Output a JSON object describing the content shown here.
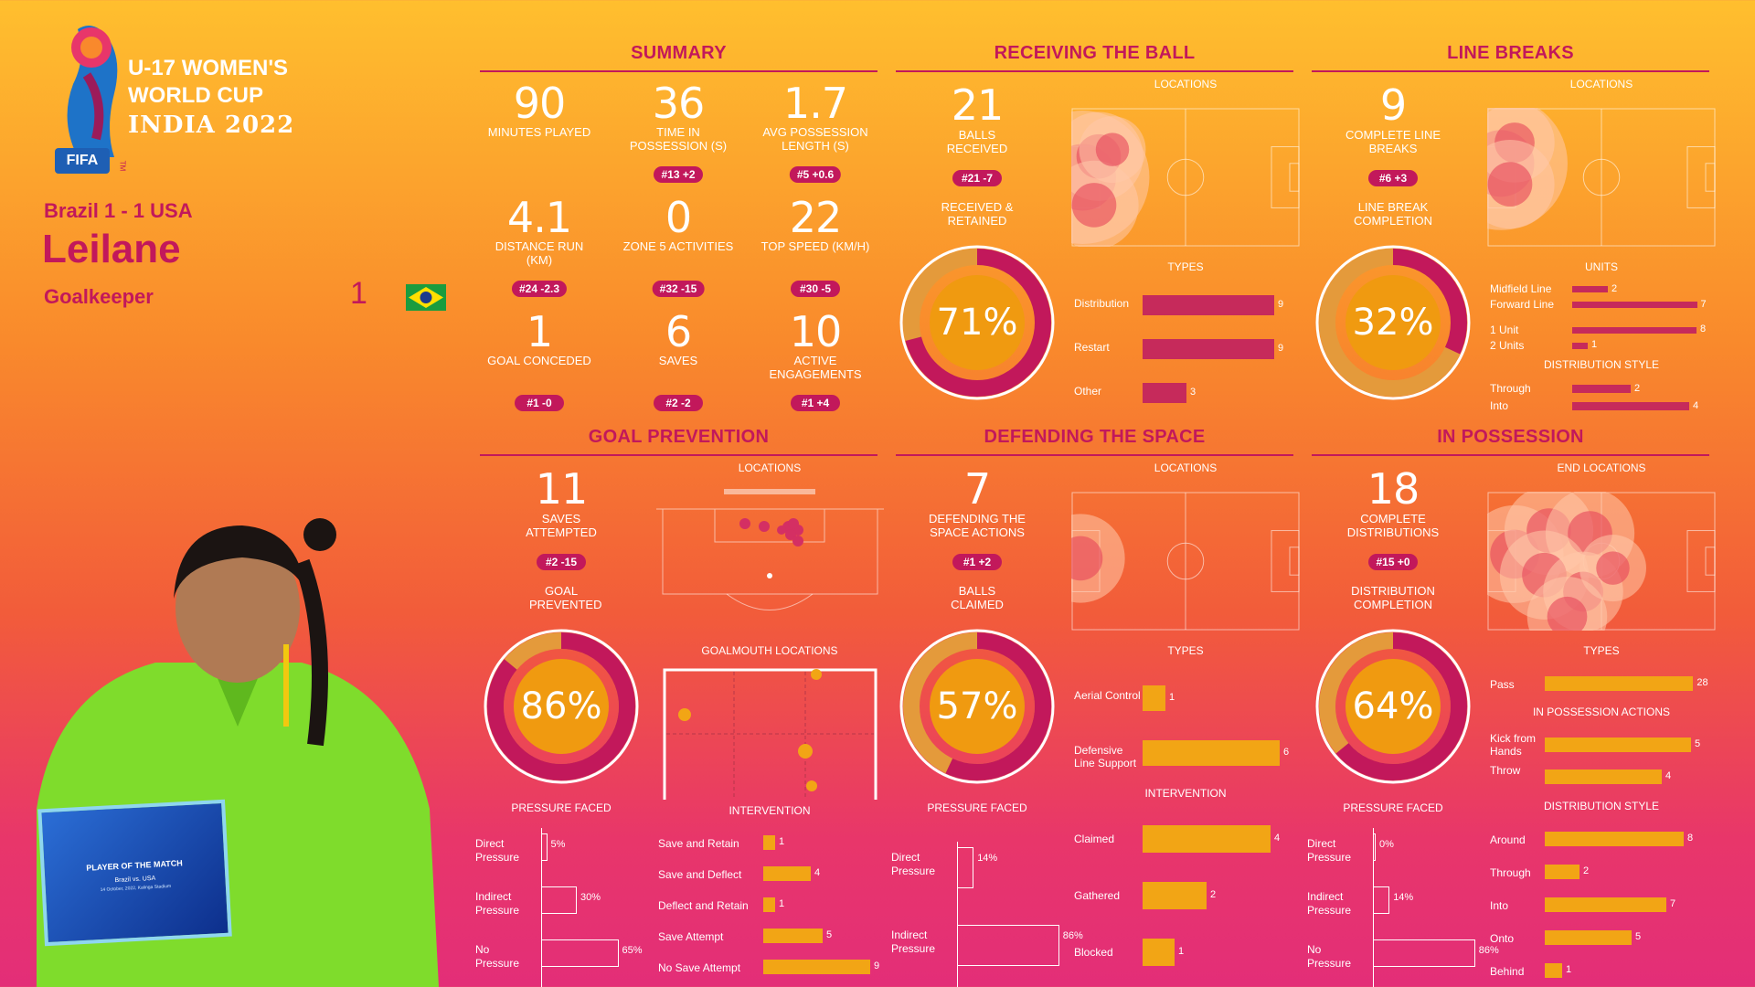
{
  "brand": {
    "fifa": "FIFA",
    "tm": "TM",
    "event_line1": "U-17 WOMEN'S",
    "event_line2": "WORLD CUP",
    "event_line3": "INDIA 2022"
  },
  "player": {
    "match": "Brazil 1 - 1 USA",
    "name": "Leilane",
    "position": "Goalkeeper",
    "number": "1",
    "flag": "brazil-flag-icon"
  },
  "award": {
    "title": "PLAYER OF THE MATCH",
    "match": "Brazil vs. USA",
    "date": "14 October, 2022, Kalinga Stadium"
  },
  "colors": {
    "accent": "#c2185b",
    "bar_red": "#c62a5b",
    "bar_orange": "#f2a515",
    "donut_fill": "#f09a10"
  },
  "summary": {
    "title": "SUMMARY",
    "stats": [
      {
        "value": "90",
        "label": "MINUTES PLAYED",
        "badge": ""
      },
      {
        "value": "36",
        "label": "TIME IN POSSESSION (s)",
        "badge": "#13 +2"
      },
      {
        "value": "1.7",
        "label": "AVG POSSESSION LENGTH (s)",
        "badge": "#5 +0.6"
      },
      {
        "value": "4.1",
        "label": "DISTANCE RUN (KM)",
        "badge": "#24 -2.3"
      },
      {
        "value": "0",
        "label": "ZONE 5 ACTIVITIES",
        "badge": "#32 -15"
      },
      {
        "value": "22",
        "label": "TOP SPEED (KM/H)",
        "badge": "#30 -5"
      },
      {
        "value": "1",
        "label": "GOAL CONCEDED",
        "badge": "#1 -0"
      },
      {
        "value": "6",
        "label": "SAVES",
        "badge": "#2 -2"
      },
      {
        "value": "10",
        "label": "ACTIVE ENGAGEMENTS",
        "badge": "#1 +4"
      }
    ]
  },
  "receiving": {
    "title": "RECEIVING THE BALL",
    "value": "21",
    "label": "BALLS RECEIVED",
    "badge": "#21 -7",
    "sub": "RECEIVED & RETAINED",
    "pct": "71%",
    "pct_value": 0.71,
    "locations": "LOCATIONS",
    "types_title": "TYPES",
    "types": [
      {
        "label": "Distribution",
        "value": 9
      },
      {
        "label": "Restart",
        "value": 9
      },
      {
        "label": "Other",
        "value": 3
      }
    ]
  },
  "line_breaks": {
    "title": "LINE BREAKS",
    "value": "9",
    "label": "COMPLETE LINE BREAKS",
    "badge": "#6 +3",
    "sub": "LINE BREAK COMPLETION",
    "pct": "32%",
    "pct_value": 0.32,
    "locations": "LOCATIONS",
    "units_title": "UNITS",
    "units": [
      {
        "label": "Midfield Line",
        "value": 2
      },
      {
        "label": "Forward Line",
        "value": 7
      },
      {
        "label": "1 Unit",
        "value": 8
      },
      {
        "label": "2 Units",
        "value": 1
      }
    ],
    "style_title": "DISTRIBUTION STYLE",
    "style": [
      {
        "label": "Through",
        "value": 2
      },
      {
        "label": "Into",
        "value": 4
      }
    ]
  },
  "goal_prevention": {
    "title": "GOAL PREVENTION",
    "value": "11",
    "label": "SAVES ATTEMPTED",
    "badge": "#2 -15",
    "sub": "GOAL PREVENTED",
    "pct": "86%",
    "pct_value": 0.86,
    "locations": "LOCATIONS",
    "goalmouth": "GOALMOUTH LOCATIONS",
    "pressure_title": "PRESSURE FACED",
    "pressure": [
      {
        "label1": "Direct",
        "label2": "Pressure",
        "value": "5%",
        "pct": 5
      },
      {
        "label1": "Indirect",
        "label2": "Pressure",
        "value": "30%",
        "pct": 30
      },
      {
        "label1": "No",
        "label2": "Pressure",
        "value": "65%",
        "pct": 65
      }
    ],
    "intervention_title": "INTERVENTION",
    "intervention": [
      {
        "label": "Save and Retain",
        "value": 1
      },
      {
        "label": "Save and Deflect",
        "value": 4
      },
      {
        "label": "Deflect and Retain",
        "value": 1
      },
      {
        "label": "Save Attempt",
        "value": 5
      },
      {
        "label": "No Save Attempt",
        "value": 9
      }
    ]
  },
  "defending": {
    "title": "DEFENDING THE SPACE",
    "value": "7",
    "label": "DEFENDING THE SPACE ACTIONS",
    "badge": "#1 +2",
    "sub": "BALLS CLAIMED",
    "pct": "57%",
    "pct_value": 0.57,
    "locations": "LOCATIONS",
    "pressure_title": "PRESSURE FACED",
    "pressure": [
      {
        "label1": "Direct",
        "label2": "Pressure",
        "value": "14%",
        "pct": 14
      },
      {
        "label1": "Indirect",
        "label2": "Pressure",
        "value": "86%",
        "pct": 86
      }
    ],
    "types_title": "TYPES",
    "types": [
      {
        "label": "Aerial Control",
        "value": 1
      },
      {
        "label": "Defensive Line Support",
        "value": 6
      }
    ],
    "intervention_title": "INTERVENTION",
    "intervention": [
      {
        "label": "Claimed",
        "value": 4
      },
      {
        "label": "Gathered",
        "value": 2
      },
      {
        "label": "Blocked",
        "value": 1
      }
    ]
  },
  "in_possession": {
    "title": "IN POSSESSION",
    "value": "18",
    "label": "COMPLETE DISTRIBUTIONS",
    "badge": "#15 +0",
    "sub": "DISTRIBUTION COMPLETION",
    "pct": "64%",
    "pct_value": 0.64,
    "locations": "END LOCATIONS",
    "pressure_title": "PRESSURE FACED",
    "pressure": [
      {
        "label1": "Direct",
        "label2": "Pressure",
        "value": "0%",
        "pct": 0
      },
      {
        "label1": "Indirect",
        "label2": "Pressure",
        "value": "14%",
        "pct": 14
      },
      {
        "label1": "No",
        "label2": "Pressure",
        "value": "86%",
        "pct": 86
      }
    ],
    "types_title": "TYPES",
    "types": [
      {
        "label": "Pass",
        "value": 28
      }
    ],
    "actions_title": "IN POSSESSION ACTIONS",
    "actions": [
      {
        "label": "Kick from Hands",
        "value": 5
      },
      {
        "label": "Throw",
        "value": 4
      }
    ],
    "style_title": "DISTRIBUTION STYLE",
    "style": [
      {
        "label": "Around",
        "value": 8
      },
      {
        "label": "Through",
        "value": 2
      },
      {
        "label": "Into",
        "value": 7
      },
      {
        "label": "Onto",
        "value": 5
      },
      {
        "label": "Behind",
        "value": 1
      }
    ]
  }
}
